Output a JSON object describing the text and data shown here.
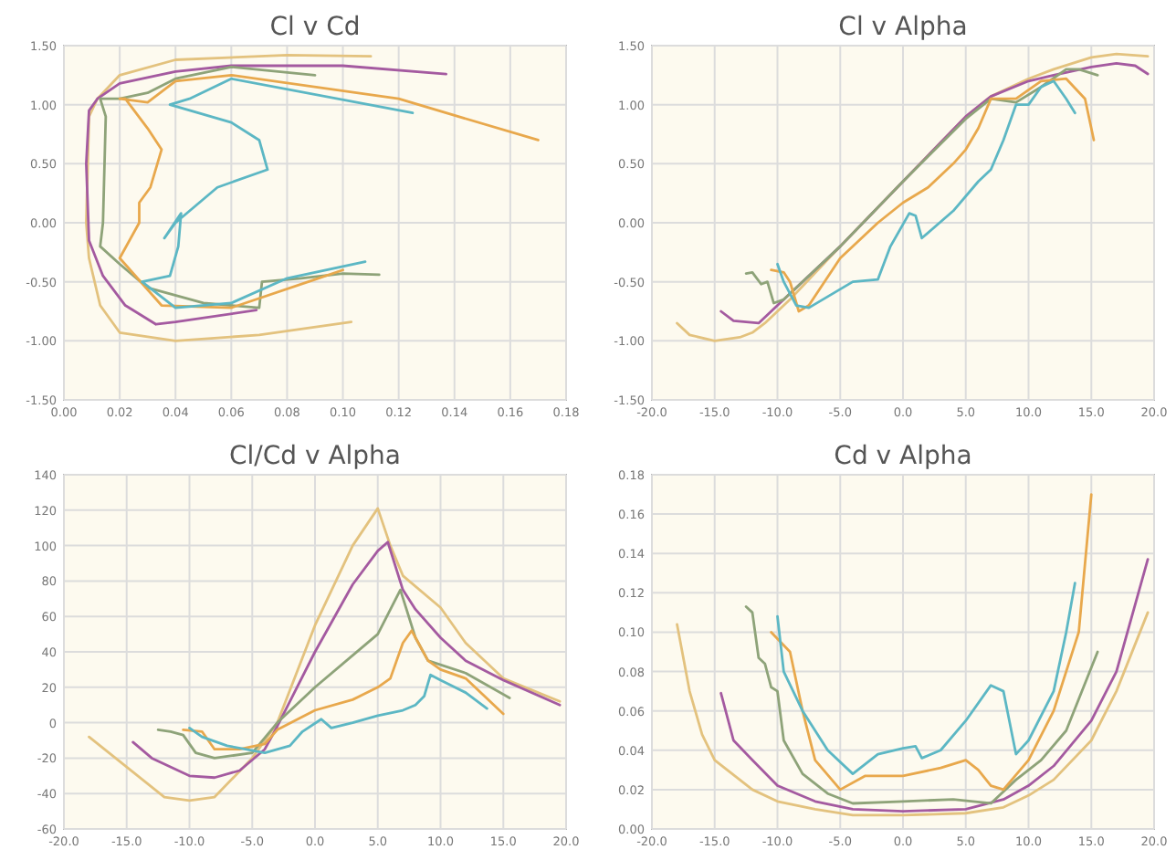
{
  "chart_data": [
    {
      "type": "line",
      "title": "Cl v Cd",
      "grid": true,
      "xlim": [
        0,
        0.18
      ],
      "ylim": [
        -1.5,
        1.5
      ],
      "xticks": [
        {
          "value": 0,
          "label": "0.00"
        },
        {
          "value": 0.02,
          "label": "0.02"
        },
        {
          "value": 0.04,
          "label": "0.04"
        },
        {
          "value": 0.06,
          "label": "0.06"
        },
        {
          "value": 0.08,
          "label": "0.08"
        },
        {
          "value": 0.1,
          "label": "0.10"
        },
        {
          "value": 0.12,
          "label": "0.12"
        },
        {
          "value": 0.14,
          "label": "0.14"
        },
        {
          "value": 0.16,
          "label": "0.16"
        },
        {
          "value": 0.18,
          "label": "0.18"
        }
      ],
      "yticks": [
        {
          "value": -1.5,
          "label": "-1.50"
        },
        {
          "value": -1,
          "label": "-1.00"
        },
        {
          "value": -0.5,
          "label": "-0.50"
        },
        {
          "value": 0,
          "label": "0.00"
        },
        {
          "value": 0.5,
          "label": "0.50"
        },
        {
          "value": 1,
          "label": "1.00"
        },
        {
          "value": 1.5,
          "label": "1.50"
        }
      ],
      "series": [
        {
          "color": "#e3c27e",
          "x": [
            0.103,
            0.07,
            0.04,
            0.02,
            0.013,
            0.009,
            0.008,
            0.009,
            0.012,
            0.02,
            0.04,
            0.08,
            0.11
          ],
          "values": [
            -0.84,
            -0.95,
            -1.0,
            -0.93,
            -0.7,
            -0.3,
            0,
            0.9,
            1.05,
            1.25,
            1.38,
            1.42,
            1.41
          ]
        },
        {
          "color": "#a45aa0",
          "x": [
            0.069,
            0.04,
            0.033,
            0.022,
            0.014,
            0.009,
            0.008,
            0.009,
            0.012,
            0.02,
            0.04,
            0.06,
            0.1,
            0.137
          ],
          "values": [
            -0.74,
            -0.84,
            -0.86,
            -0.7,
            -0.45,
            -0.15,
            0.5,
            0.95,
            1.05,
            1.18,
            1.28,
            1.33,
            1.33,
            1.26
          ]
        },
        {
          "color": "#8ea379",
          "x": [
            0.113,
            0.1,
            0.085,
            0.071,
            0.07,
            0.05,
            0.03,
            0.02,
            0.013,
            0.014,
            0.015,
            0.013,
            0.02,
            0.03,
            0.04,
            0.06,
            0.09
          ],
          "values": [
            -0.44,
            -0.43,
            -0.47,
            -0.5,
            -0.72,
            -0.68,
            -0.55,
            -0.35,
            -0.2,
            0,
            0.9,
            1.05,
            1.05,
            1.1,
            1.22,
            1.32,
            1.25
          ]
        },
        {
          "color": "#e8a84c",
          "x": [
            0.1,
            0.09,
            0.06,
            0.035,
            0.02,
            0.027,
            0.027,
            0.031,
            0.035,
            0.03,
            0.022,
            0.02,
            0.03,
            0.04,
            0.06,
            0.12,
            0.17
          ],
          "values": [
            -0.4,
            -0.48,
            -0.72,
            -0.7,
            -0.3,
            0,
            0.17,
            0.3,
            0.62,
            0.8,
            1.05,
            1.05,
            1.02,
            1.2,
            1.25,
            1.05,
            0.7
          ]
        },
        {
          "color": "#5cb7c4",
          "x": [
            0.108,
            0.08,
            0.06,
            0.04,
            0.028,
            0.038,
            0.041,
            0.042,
            0.036,
            0.04,
            0.055,
            0.073,
            0.07,
            0.06,
            0.038,
            0.045,
            0.06,
            0.125
          ],
          "values": [
            -0.33,
            -0.47,
            -0.68,
            -0.72,
            -0.5,
            -0.45,
            -0.2,
            0.08,
            -0.13,
            0,
            0.3,
            0.45,
            0.7,
            0.85,
            1.0,
            1.05,
            1.22,
            0.93
          ]
        }
      ]
    },
    {
      "type": "line",
      "title": "Cl v Alpha",
      "grid": true,
      "xlim": [
        -20,
        20
      ],
      "ylim": [
        -1.5,
        1.5
      ],
      "xticks": [
        {
          "value": -20,
          "label": "-20.0"
        },
        {
          "value": -15,
          "label": "-15.0"
        },
        {
          "value": -10,
          "label": "-10.0"
        },
        {
          "value": -5,
          "label": "-5.0"
        },
        {
          "value": 0,
          "label": "0.0"
        },
        {
          "value": 5,
          "label": "5.0"
        },
        {
          "value": 10,
          "label": "10.0"
        },
        {
          "value": 15,
          "label": "15.0"
        },
        {
          "value": 20,
          "label": "20.0"
        }
      ],
      "yticks": [
        {
          "value": -1.5,
          "label": "-1.50"
        },
        {
          "value": -1,
          "label": "-1.00"
        },
        {
          "value": -0.5,
          "label": "-0.50"
        },
        {
          "value": 0,
          "label": "0.00"
        },
        {
          "value": 0.5,
          "label": "0.50"
        },
        {
          "value": 1,
          "label": "1.00"
        },
        {
          "value": 1.5,
          "label": "1.50"
        }
      ],
      "series": [
        {
          "color": "#e3c27e",
          "x": [
            -18,
            -17,
            -15,
            -13,
            -12,
            -11,
            -9,
            -5,
            0,
            5,
            7,
            10,
            12,
            15,
            17,
            19.5
          ],
          "values": [
            -0.85,
            -0.95,
            -1.0,
            -0.97,
            -0.93,
            -0.85,
            -0.65,
            -0.2,
            0.35,
            0.9,
            1.07,
            1.22,
            1.3,
            1.4,
            1.43,
            1.41
          ]
        },
        {
          "color": "#a45aa0",
          "x": [
            -14.5,
            -13.5,
            -11.5,
            -10,
            -5,
            0,
            5,
            7,
            10,
            12,
            15,
            17,
            18.5,
            19.5
          ],
          "values": [
            -0.75,
            -0.83,
            -0.85,
            -0.7,
            -0.2,
            0.35,
            0.9,
            1.07,
            1.2,
            1.25,
            1.32,
            1.35,
            1.33,
            1.26
          ]
        },
        {
          "color": "#8ea379",
          "x": [
            -12.5,
            -12,
            -11.3,
            -10.8,
            -10.3,
            -9.5,
            -5,
            0,
            5,
            7,
            9,
            11,
            13,
            14,
            15.5
          ],
          "values": [
            -0.43,
            -0.42,
            -0.52,
            -0.5,
            -0.68,
            -0.65,
            -0.2,
            0.35,
            0.88,
            1.05,
            1.02,
            1.15,
            1.3,
            1.3,
            1.25
          ]
        },
        {
          "color": "#e8a84c",
          "x": [
            -10.5,
            -9.5,
            -9,
            -8.3,
            -7.5,
            -5,
            -2,
            0,
            2,
            4,
            5,
            6,
            7,
            9,
            11,
            13,
            14.5,
            15.2
          ],
          "values": [
            -0.4,
            -0.42,
            -0.5,
            -0.75,
            -0.7,
            -0.3,
            0,
            0.17,
            0.3,
            0.5,
            0.62,
            0.8,
            1.05,
            1.05,
            1.2,
            1.22,
            1.05,
            0.7
          ]
        },
        {
          "color": "#5cb7c4",
          "x": [
            -10,
            -9.5,
            -8.5,
            -7.5,
            -4,
            -2,
            -1,
            0.5,
            1,
            1.5,
            4,
            6,
            7,
            8,
            9,
            10,
            11,
            12,
            13,
            13.7
          ],
          "values": [
            -0.35,
            -0.5,
            -0.7,
            -0.72,
            -0.5,
            -0.48,
            -0.2,
            0.08,
            0.06,
            -0.13,
            0.1,
            0.35,
            0.45,
            0.7,
            1.0,
            1.0,
            1.15,
            1.2,
            1.05,
            0.93
          ]
        }
      ]
    },
    {
      "type": "line",
      "title": "Cl/Cd v Alpha",
      "grid": true,
      "xlim": [
        -20,
        20
      ],
      "ylim": [
        -60,
        140
      ],
      "xticks": [
        {
          "value": -20,
          "label": "-20.0"
        },
        {
          "value": -15,
          "label": "-15.0"
        },
        {
          "value": -10,
          "label": "-10.0"
        },
        {
          "value": -5,
          "label": "-5.0"
        },
        {
          "value": 0,
          "label": "0.0"
        },
        {
          "value": 5,
          "label": "5.0"
        },
        {
          "value": 10,
          "label": "10.0"
        },
        {
          "value": 15,
          "label": "15.0"
        },
        {
          "value": 20,
          "label": "20.0"
        }
      ],
      "yticks": [
        -60,
        -40,
        -20,
        0,
        20,
        40,
        60,
        80,
        100,
        120,
        140
      ],
      "series": [
        {
          "color": "#e3c27e",
          "x": [
            -18,
            -15,
            -12,
            -10,
            -8,
            -5,
            -3,
            0,
            3,
            5,
            6,
            7,
            10,
            12,
            15,
            19.5
          ],
          "values": [
            -8,
            -25,
            -42,
            -44,
            -42,
            -20,
            0,
            55,
            100,
            121,
            100,
            83,
            65,
            45,
            25,
            12
          ]
        },
        {
          "color": "#a45aa0",
          "x": [
            -14.5,
            -13,
            -10,
            -8,
            -6,
            -4,
            -3,
            0,
            3,
            5,
            5.8,
            7,
            8,
            10,
            12,
            15,
            19.5
          ],
          "values": [
            -11,
            -20,
            -30,
            -31,
            -27,
            -15,
            -2,
            40,
            78,
            97,
            102,
            75,
            64,
            48,
            35,
            24,
            10
          ]
        },
        {
          "color": "#8ea379",
          "x": [
            -12.5,
            -11.5,
            -10.5,
            -9.5,
            -8,
            -5,
            -3,
            0,
            3,
            5,
            6.8,
            8,
            9,
            12,
            15.5
          ],
          "values": [
            -4,
            -5,
            -7,
            -17,
            -20,
            -17,
            0,
            20,
            38,
            50,
            75,
            48,
            35,
            28,
            14
          ]
        },
        {
          "color": "#e8a84c",
          "x": [
            -10.5,
            -9,
            -8,
            -6,
            -4,
            -3,
            0,
            3,
            5,
            6,
            7,
            7.7,
            9,
            10,
            12,
            15
          ],
          "values": [
            -4,
            -5,
            -15,
            -15,
            -12,
            -4,
            7,
            13,
            20,
            25,
            45,
            52,
            35,
            30,
            25,
            5
          ]
        },
        {
          "color": "#5cb7c4",
          "x": [
            -10,
            -9,
            -7,
            -4,
            -2,
            -1,
            0.5,
            1.3,
            3,
            5,
            7,
            8,
            8.7,
            9.2,
            10,
            12,
            13.7
          ],
          "values": [
            -3,
            -8,
            -13,
            -17,
            -13,
            -5,
            2,
            -3,
            0,
            4,
            7,
            10,
            15,
            27,
            24,
            17,
            8
          ]
        }
      ]
    },
    {
      "type": "line",
      "title": "Cd v Alpha",
      "grid": true,
      "xlim": [
        -20,
        20
      ],
      "ylim": [
        0,
        0.18
      ],
      "xticks": [
        {
          "value": -20,
          "label": "-20.0"
        },
        {
          "value": -15,
          "label": "-15.0"
        },
        {
          "value": -10,
          "label": "-10.0"
        },
        {
          "value": -5,
          "label": "-5.0"
        },
        {
          "value": 0,
          "label": "0.0"
        },
        {
          "value": 5,
          "label": "5.0"
        },
        {
          "value": 10,
          "label": "10.0"
        },
        {
          "value": 15,
          "label": "15.0"
        },
        {
          "value": 20,
          "label": "20.0"
        }
      ],
      "yticks": [
        {
          "value": 0,
          "label": "0.00"
        },
        {
          "value": 0.02,
          "label": "0.02"
        },
        {
          "value": 0.04,
          "label": "0.04"
        },
        {
          "value": 0.06,
          "label": "0.06"
        },
        {
          "value": 0.08,
          "label": "0.08"
        },
        {
          "value": 0.1,
          "label": "0.10"
        },
        {
          "value": 0.12,
          "label": "0.12"
        },
        {
          "value": 0.14,
          "label": "0.14"
        },
        {
          "value": 0.16,
          "label": "0.16"
        },
        {
          "value": 0.18,
          "label": "0.18"
        }
      ],
      "series": [
        {
          "color": "#e3c27e",
          "x": [
            -18,
            -17,
            -16,
            -15,
            -12,
            -10,
            -7,
            -4,
            0,
            5,
            8,
            10,
            12,
            15,
            17,
            19.5
          ],
          "values": [
            0.104,
            0.07,
            0.048,
            0.035,
            0.02,
            0.014,
            0.01,
            0.007,
            0.007,
            0.008,
            0.011,
            0.017,
            0.025,
            0.045,
            0.07,
            0.11
          ]
        },
        {
          "color": "#a45aa0",
          "x": [
            -14.5,
            -13.5,
            -12,
            -10,
            -7,
            -4,
            0,
            5,
            8,
            10,
            12,
            15,
            17,
            19.5
          ],
          "values": [
            0.069,
            0.045,
            0.035,
            0.022,
            0.014,
            0.01,
            0.009,
            0.01,
            0.015,
            0.022,
            0.032,
            0.055,
            0.08,
            0.137
          ]
        },
        {
          "color": "#8ea379",
          "x": [
            -12.5,
            -12,
            -11.5,
            -11,
            -10.5,
            -10,
            -9.5,
            -8,
            -6,
            -4,
            0,
            4,
            7,
            9,
            11,
            13,
            15.5
          ],
          "values": [
            0.113,
            0.11,
            0.087,
            0.084,
            0.072,
            0.07,
            0.045,
            0.028,
            0.018,
            0.013,
            0.014,
            0.015,
            0.013,
            0.025,
            0.035,
            0.05,
            0.09
          ]
        },
        {
          "color": "#e8a84c",
          "x": [
            -10.5,
            -9,
            -8,
            -7,
            -5,
            -3,
            0,
            3,
            5,
            6,
            7,
            8,
            10,
            12,
            14,
            15
          ],
          "values": [
            0.1,
            0.09,
            0.06,
            0.035,
            0.02,
            0.027,
            0.027,
            0.031,
            0.035,
            0.03,
            0.022,
            0.02,
            0.035,
            0.06,
            0.1,
            0.17
          ]
        },
        {
          "color": "#5cb7c4",
          "x": [
            -10,
            -9.5,
            -8,
            -6,
            -4,
            -2,
            0,
            1,
            1.5,
            3,
            5,
            7,
            8,
            9,
            10,
            12,
            13,
            13.7
          ],
          "values": [
            0.108,
            0.08,
            0.06,
            0.04,
            0.028,
            0.038,
            0.041,
            0.042,
            0.036,
            0.04,
            0.055,
            0.073,
            0.07,
            0.038,
            0.045,
            0.07,
            0.1,
            0.125
          ]
        }
      ]
    }
  ]
}
